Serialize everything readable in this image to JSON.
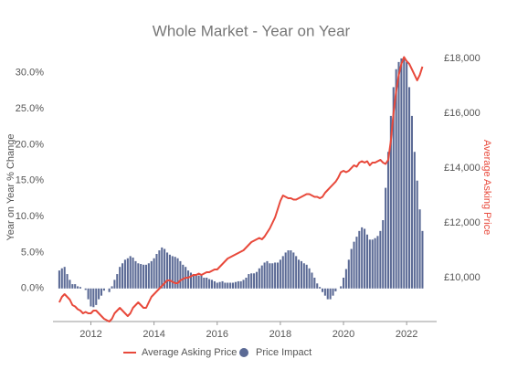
{
  "chart_data": {
    "type": "bar",
    "title": "Whole Market - Year on Year",
    "y_label": "Year on Year % Change",
    "y2_label": "Average Asking Price",
    "x": [
      2011,
      2011.083,
      2011.167,
      2011.25,
      2011.333,
      2011.417,
      2011.5,
      2011.583,
      2011.667,
      2011.75,
      2011.833,
      2011.917,
      2012,
      2012.083,
      2012.167,
      2012.25,
      2012.333,
      2012.417,
      2012.5,
      2012.583,
      2012.667,
      2012.75,
      2012.833,
      2012.917,
      2013,
      2013.083,
      2013.167,
      2013.25,
      2013.333,
      2013.417,
      2013.5,
      2013.583,
      2013.667,
      2013.75,
      2013.833,
      2013.917,
      2014,
      2014.083,
      2014.167,
      2014.25,
      2014.333,
      2014.417,
      2014.5,
      2014.583,
      2014.667,
      2014.75,
      2014.833,
      2014.917,
      2015,
      2015.083,
      2015.167,
      2015.25,
      2015.333,
      2015.417,
      2015.5,
      2015.583,
      2015.667,
      2015.75,
      2015.833,
      2015.917,
      2016,
      2016.083,
      2016.167,
      2016.25,
      2016.333,
      2016.417,
      2016.5,
      2016.583,
      2016.667,
      2016.75,
      2016.833,
      2016.917,
      2017,
      2017.083,
      2017.167,
      2017.25,
      2017.333,
      2017.417,
      2017.5,
      2017.583,
      2017.667,
      2017.75,
      2017.833,
      2017.917,
      2018,
      2018.083,
      2018.167,
      2018.25,
      2018.333,
      2018.417,
      2018.5,
      2018.583,
      2018.667,
      2018.75,
      2018.833,
      2018.917,
      2019,
      2019.083,
      2019.167,
      2019.25,
      2019.333,
      2019.417,
      2019.5,
      2019.583,
      2019.667,
      2019.75,
      2019.833,
      2019.917,
      2020,
      2020.083,
      2020.167,
      2020.25,
      2020.333,
      2020.417,
      2020.5,
      2020.583,
      2020.667,
      2020.75,
      2020.833,
      2020.917,
      2021,
      2021.083,
      2021.167,
      2021.25,
      2021.333,
      2021.417,
      2021.5,
      2021.583,
      2021.667,
      2021.75,
      2021.833,
      2021.917,
      2022,
      2022.083,
      2022.167,
      2022.25,
      2022.333,
      2022.417,
      2022.5
    ],
    "series": [
      {
        "name": "Price Impact",
        "type": "bar",
        "color": "#5b6a95",
        "values": [
          2.5,
          2.8,
          3.0,
          2.0,
          1.2,
          0.6,
          0.6,
          0.3,
          0.2,
          0.0,
          -0.2,
          -1.5,
          -2.5,
          -2.6,
          -2.3,
          -1.5,
          -1.0,
          -0.3,
          0.0,
          -0.5,
          0.3,
          1.2,
          2.0,
          3.0,
          3.5,
          4.0,
          4.2,
          4.5,
          4.3,
          3.8,
          3.5,
          3.4,
          3.3,
          3.3,
          3.5,
          3.8,
          4.2,
          4.8,
          5.3,
          5.7,
          5.5,
          5.0,
          4.7,
          4.5,
          4.4,
          4.2,
          3.8,
          3.3,
          3.0,
          2.5,
          2.2,
          2.0,
          1.9,
          1.8,
          1.8,
          1.5,
          1.5,
          1.3,
          1.2,
          1.0,
          0.8,
          0.9,
          1.0,
          0.8,
          0.8,
          0.8,
          0.8,
          0.9,
          1.0,
          1.0,
          1.2,
          1.5,
          2.0,
          2.1,
          2.1,
          2.3,
          2.8,
          3.2,
          3.6,
          3.8,
          3.5,
          3.5,
          3.6,
          3.6,
          4.0,
          4.5,
          5.0,
          5.3,
          5.3,
          5.0,
          4.5,
          4.0,
          3.8,
          3.5,
          3.3,
          2.8,
          2.2,
          1.5,
          0.7,
          0.2,
          -0.5,
          -1.0,
          -1.5,
          -1.5,
          -1.0,
          -0.4,
          0.0,
          0.3,
          1.5,
          2.7,
          4.0,
          5.5,
          6.5,
          7.2,
          8.0,
          8.5,
          8.3,
          7.5,
          6.8,
          6.8,
          7.0,
          7.3,
          8.0,
          9.5,
          14.0,
          19.0,
          24.0,
          28.0,
          30.5,
          31.5,
          32.0,
          32.2,
          31.5,
          28.0,
          24.0,
          19.0,
          15.0,
          11.0,
          8.0
        ]
      },
      {
        "name": "Average Asking Price",
        "type": "line",
        "axis": "y2",
        "color": "#e8493b",
        "values": [
          9100,
          9300,
          9400,
          9300,
          9200,
          9000,
          8950,
          8850,
          8800,
          8700,
          8750,
          8700,
          8700,
          8800,
          8800,
          8700,
          8600,
          8500,
          8450,
          8400,
          8500,
          8700,
          8800,
          8900,
          8800,
          8700,
          8600,
          8700,
          8900,
          9000,
          9100,
          9000,
          8900,
          8900,
          9100,
          9300,
          9400,
          9500,
          9600,
          9700,
          9800,
          9900,
          9900,
          9850,
          9800,
          9800,
          9900,
          9950,
          10000,
          10000,
          10050,
          10100,
          10100,
          10150,
          10100,
          10150,
          10200,
          10200,
          10250,
          10300,
          10300,
          10400,
          10500,
          10600,
          10700,
          10750,
          10800,
          10850,
          10900,
          10950,
          11000,
          11100,
          11200,
          11300,
          11350,
          11400,
          11450,
          11400,
          11500,
          11650,
          11800,
          12000,
          12200,
          12500,
          12800,
          13000,
          12950,
          12900,
          12900,
          12850,
          12850,
          12900,
          12950,
          13000,
          13050,
          13050,
          13000,
          12950,
          12950,
          12900,
          12950,
          13100,
          13200,
          13300,
          13400,
          13500,
          13650,
          13850,
          13900,
          13850,
          13900,
          14000,
          14100,
          14050,
          14200,
          14250,
          14200,
          14250,
          14100,
          14200,
          14200,
          14250,
          14300,
          14200,
          14150,
          14300,
          15000,
          16000,
          16800,
          17400,
          17800,
          18050,
          17900,
          17800,
          17600,
          17400,
          17200,
          17400,
          17700
        ]
      }
    ],
    "xlim": [
      2010.8,
      2022.95
    ],
    "xticks": [
      2012,
      2014,
      2016,
      2018,
      2020,
      2022
    ],
    "ylim": [
      -4.6,
      32.5
    ],
    "yticks": [
      {
        "value": 0,
        "label": "0.0%"
      },
      {
        "value": 5,
        "label": "5.0%"
      },
      {
        "value": 10,
        "label": "10.0%"
      },
      {
        "value": 15,
        "label": "15.0%"
      },
      {
        "value": 20,
        "label": "20.0%"
      },
      {
        "value": 25,
        "label": "25.0%"
      },
      {
        "value": 30,
        "label": "30.0%"
      }
    ],
    "y2lim": [
      8400,
      18133
    ],
    "y2ticks": [
      {
        "value": 10000,
        "label": "£10,000"
      },
      {
        "value": 12000,
        "label": "£12,000"
      },
      {
        "value": 14000,
        "label": "£14,000"
      },
      {
        "value": 16000,
        "label": "£16,000"
      },
      {
        "value": 18000,
        "label": "£18,000"
      }
    ],
    "grid": false
  }
}
